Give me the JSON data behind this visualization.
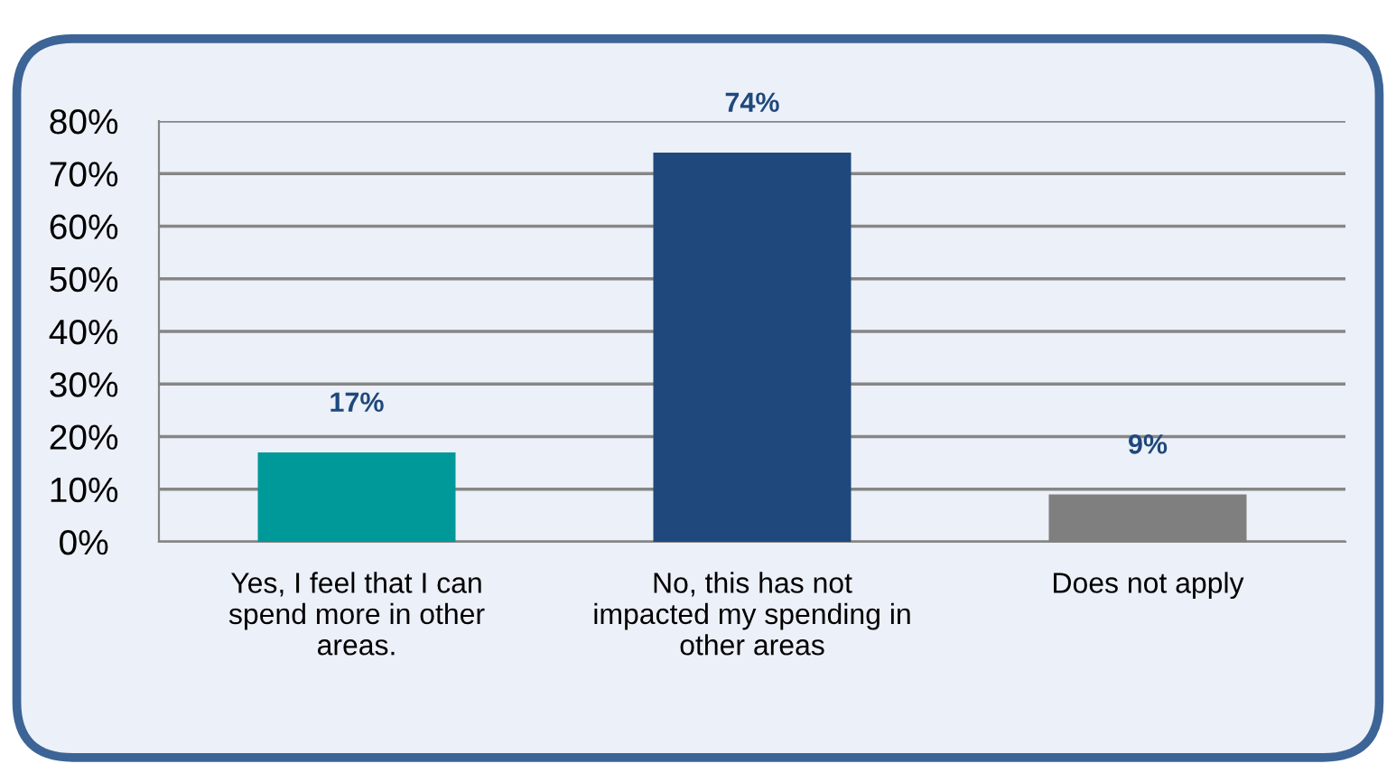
{
  "chart_data": {
    "type": "bar",
    "categories": [
      "Yes, I feel that I can\nspend more in other\nareas.",
      "No, this has not\nimpacted my spending in\nother areas",
      "Does not apply"
    ],
    "values": [
      17,
      74,
      9
    ],
    "colors": [
      "#009999",
      "#1f487c",
      "#7f7f7f"
    ],
    "value_labels": [
      "17%",
      "74%",
      "9%"
    ],
    "ylim": [
      0,
      80
    ],
    "yticks": [
      {
        "value": 0,
        "label": "0%"
      },
      {
        "value": 10,
        "label": "10%"
      },
      {
        "value": 20,
        "label": "20%"
      },
      {
        "value": 30,
        "label": "30%"
      },
      {
        "value": 40,
        "label": "40%"
      },
      {
        "value": 50,
        "label": "50%"
      },
      {
        "value": 60,
        "label": "60%"
      },
      {
        "value": 70,
        "label": "70%"
      },
      {
        "value": 80,
        "label": "80%"
      }
    ],
    "grid": "y",
    "legend": false
  }
}
